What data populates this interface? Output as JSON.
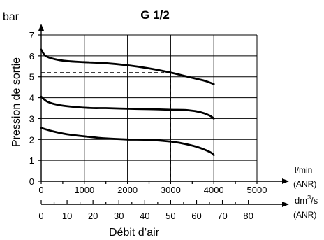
{
  "chart_data": {
    "type": "line",
    "title": "G 1/2",
    "ylabel": "Pression de sortie",
    "yunit": "bar",
    "ylim": [
      0,
      7
    ],
    "yticks": [
      "0",
      "1",
      "2",
      "3",
      "4",
      "5",
      "6",
      "7"
    ],
    "xlabel": "Débit d’air",
    "x_primary": {
      "unit_line1": "l/min",
      "unit_line2": "(ANR)",
      "xlim": [
        0,
        5000
      ],
      "ticks": [
        "0",
        "1000",
        "2000",
        "3000",
        "4000",
        "5000"
      ]
    },
    "x_secondary": {
      "unit_main": "dm",
      "unit_sup": "3",
      "unit_rest": "/s",
      "unit_line2": "(ANR)",
      "ticks": [
        "0",
        "10",
        "20",
        "30",
        "40",
        "50",
        "60",
        "70",
        "80"
      ]
    },
    "grid": true,
    "series": [
      {
        "x": [
          0,
          100,
          300,
          600,
          1000,
          1500,
          2000,
          2500,
          3000,
          3300,
          3600,
          3800,
          4000
        ],
        "values": [
          6.3,
          6.0,
          5.85,
          5.75,
          5.7,
          5.65,
          5.55,
          5.4,
          5.2,
          5.05,
          4.9,
          4.8,
          4.65
        ]
      },
      {
        "x": [
          0,
          150,
          400,
          800,
          1200,
          1500,
          2000,
          2500,
          3000,
          3400,
          3700,
          3900,
          4000
        ],
        "values": [
          4.05,
          3.8,
          3.65,
          3.55,
          3.5,
          3.5,
          3.47,
          3.45,
          3.42,
          3.4,
          3.3,
          3.15,
          3.0
        ]
      },
      {
        "x": [
          0,
          250,
          600,
          1000,
          1500,
          2000,
          2500,
          3000,
          3300,
          3600,
          3800,
          3950,
          4000
        ],
        "values": [
          2.55,
          2.4,
          2.25,
          2.15,
          2.05,
          2.0,
          1.98,
          1.9,
          1.8,
          1.65,
          1.5,
          1.35,
          1.25
        ]
      }
    ],
    "annotations": [
      {
        "type": "dashed-reference",
        "x": 3000,
        "y": 5.2
      }
    ]
  }
}
